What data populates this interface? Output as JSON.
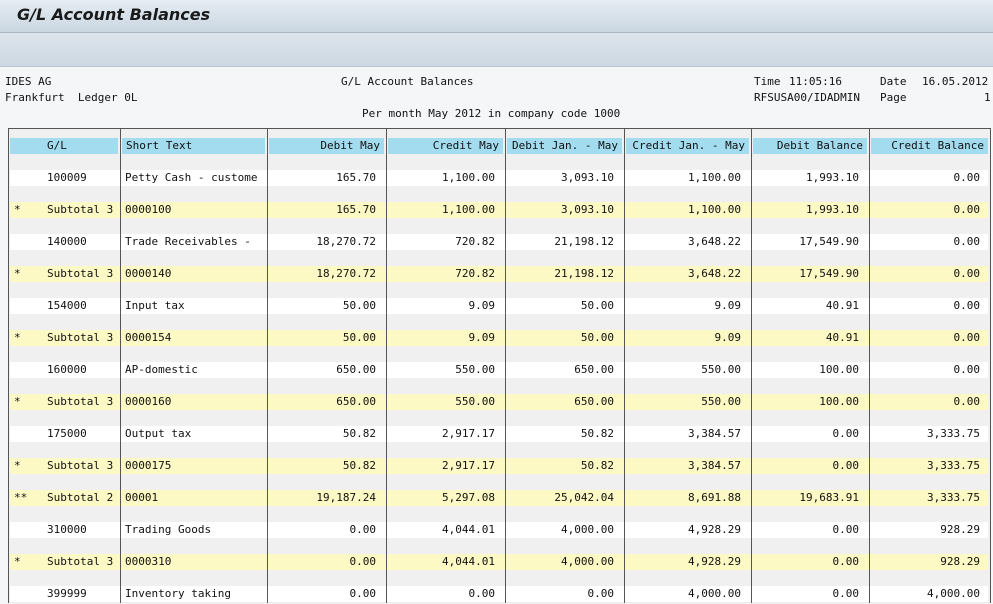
{
  "header": {
    "title": "G/L Account Balances"
  },
  "report": {
    "company": "IDES AG",
    "city_ledger": "Frankfurt  Ledger 0L",
    "report_title": "G/L Account Balances",
    "time_label": "Time",
    "time": "11:05:16",
    "date_label": "Date",
    "date": "16.05.2012",
    "program": "RFSUSA00/IDADMIN",
    "page_label": "Page",
    "page": "1",
    "subtitle": "Per month May 2012 in company code 1000"
  },
  "table": {
    "columns": [
      "G/L",
      "Short Text",
      "Debit May",
      "Credit May",
      "Debit Jan. - May",
      "Credit Jan. - May",
      "Debit Balance",
      "Credit Balance"
    ],
    "rows": [
      [
        "",
        "100009",
        "Petty Cash - custome",
        "165.70",
        "1,100.00",
        "3,093.10",
        "1,100.00",
        "1,993.10",
        "0.00"
      ],
      [
        "*",
        "Subtotal 3",
        "0000100",
        "165.70",
        "1,100.00",
        "3,093.10",
        "1,100.00",
        "1,993.10",
        "0.00"
      ],
      [
        "",
        "140000",
        "Trade Receivables -",
        "18,270.72",
        "720.82",
        "21,198.12",
        "3,648.22",
        "17,549.90",
        "0.00"
      ],
      [
        "*",
        "Subtotal 3",
        "0000140",
        "18,270.72",
        "720.82",
        "21,198.12",
        "3,648.22",
        "17,549.90",
        "0.00"
      ],
      [
        "",
        "154000",
        "Input tax",
        "50.00",
        "9.09",
        "50.00",
        "9.09",
        "40.91",
        "0.00"
      ],
      [
        "*",
        "Subtotal 3",
        "0000154",
        "50.00",
        "9.09",
        "50.00",
        "9.09",
        "40.91",
        "0.00"
      ],
      [
        "",
        "160000",
        "AP-domestic",
        "650.00",
        "550.00",
        "650.00",
        "550.00",
        "100.00",
        "0.00"
      ],
      [
        "*",
        "Subtotal 3",
        "0000160",
        "650.00",
        "550.00",
        "650.00",
        "550.00",
        "100.00",
        "0.00"
      ],
      [
        "",
        "175000",
        "Output tax",
        "50.82",
        "2,917.17",
        "50.82",
        "3,384.57",
        "0.00",
        "3,333.75"
      ],
      [
        "*",
        "Subtotal 3",
        "0000175",
        "50.82",
        "2,917.17",
        "50.82",
        "3,384.57",
        "0.00",
        "3,333.75"
      ],
      [
        "**",
        "Subtotal 2",
        "00001",
        "19,187.24",
        "5,297.08",
        "25,042.04",
        "8,691.88",
        "19,683.91",
        "3,333.75"
      ],
      [
        "",
        "310000",
        "Trading Goods",
        "0.00",
        "4,044.01",
        "4,000.00",
        "4,928.29",
        "0.00",
        "928.29"
      ],
      [
        "*",
        "Subtotal 3",
        "0000310",
        "0.00",
        "4,044.01",
        "4,000.00",
        "4,928.29",
        "0.00",
        "928.29"
      ],
      [
        "",
        "399999",
        "Inventory taking",
        "0.00",
        "0.00",
        "0.00",
        "4,000.00",
        "0.00",
        "4,000.00"
      ]
    ]
  }
}
